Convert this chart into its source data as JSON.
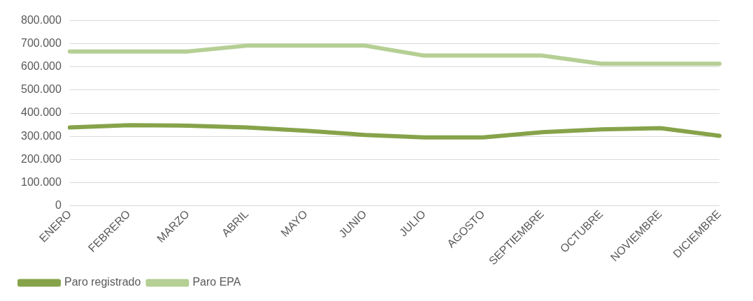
{
  "chart_data": {
    "type": "line",
    "categories": [
      "ENERO",
      "FEBRERO",
      "MARZO",
      "ABRIL",
      "MAYO",
      "JUNIO",
      "JULIO",
      "AGOSTO",
      "SEPTIEMBRE",
      "OCTUBRE",
      "NOVIEMBRE",
      "DICIEMBRE"
    ],
    "series": [
      {
        "name": "Paro registrado",
        "color": "#86a34a",
        "values": [
          338000,
          348000,
          346000,
          338000,
          324000,
          306000,
          295000,
          295000,
          318000,
          330000,
          335000,
          302000
        ]
      },
      {
        "name": "Paro EPA",
        "color": "#b5cf94",
        "values": [
          667000,
          667000,
          667000,
          692000,
          692000,
          692000,
          649000,
          649000,
          649000,
          614000,
          614000,
          614000
        ]
      }
    ],
    "ylim": [
      0,
      800000
    ],
    "yticks": [
      {
        "value": 0,
        "label": "0"
      },
      {
        "value": 100000,
        "label": "100.000"
      },
      {
        "value": 200000,
        "label": "200.000"
      },
      {
        "value": 300000,
        "label": "300.000"
      },
      {
        "value": 400000,
        "label": "400.000"
      },
      {
        "value": 500000,
        "label": "500.000"
      },
      {
        "value": 600000,
        "label": "600.000"
      },
      {
        "value": 700000,
        "label": "700.000"
      },
      {
        "value": 800000,
        "label": "800.000"
      }
    ],
    "grid": "y",
    "legend": "bottom left",
    "marker": "none",
    "line_style": "solid"
  }
}
